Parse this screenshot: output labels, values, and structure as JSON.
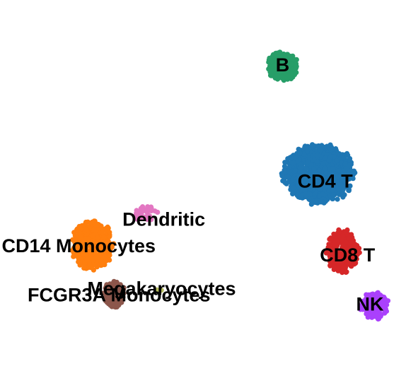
{
  "chart_data": {
    "type": "scatter",
    "title": "",
    "xlabel": "",
    "ylabel": "",
    "axes_visible": false,
    "grid": false,
    "legend": "on data",
    "xlim": [
      -8,
      10
    ],
    "ylim": [
      -9,
      6.5
    ],
    "clusters": [
      {
        "name": "CD4 T",
        "color": "#1f77b4",
        "center": [
          5.9,
          -0.8
        ],
        "spread": [
          1.55,
          1.3
        ],
        "count": 1100
      },
      {
        "name": "CD14 Monocytes",
        "color": "#ff7f0e",
        "center": [
          -4.2,
          -4.0
        ],
        "spread": [
          0.9,
          1.05
        ],
        "count": 480
      },
      {
        "name": "B",
        "color": "#279e68",
        "center": [
          4.3,
          4.0
        ],
        "spread": [
          0.65,
          0.65
        ],
        "count": 340
      },
      {
        "name": "CD8 T",
        "color": "#d62728",
        "center": [
          7.0,
          -4.3
        ],
        "spread": [
          0.7,
          0.95
        ],
        "count": 300
      },
      {
        "name": "NK",
        "color": "#aa40fc",
        "center": [
          8.4,
          -6.7
        ],
        "spread": [
          0.6,
          0.6
        ],
        "count": 160
      },
      {
        "name": "FCGR3A Monocytes",
        "color": "#8c564b",
        "center": [
          -3.2,
          -6.2
        ],
        "spread": [
          0.45,
          0.6
        ],
        "count": 150
      },
      {
        "name": "Dendritic",
        "color": "#e377c2",
        "center": [
          -1.8,
          -2.6
        ],
        "spread": [
          0.55,
          0.35
        ],
        "count": 35
      },
      {
        "name": "Megakaryocytes",
        "color": "#b5bd61",
        "center": [
          -1.2,
          -6.0
        ],
        "spread": [
          0.1,
          0.1
        ],
        "count": 3
      }
    ],
    "labels": [
      {
        "text": "B",
        "at": [
          4.3,
          4.0
        ]
      },
      {
        "text": "CD4 T",
        "at": [
          6.2,
          -1.2
        ]
      },
      {
        "text": "Dendritic",
        "at": [
          -1.0,
          -2.9
        ]
      },
      {
        "text": "CD14 Monocytes",
        "at": [
          -4.8,
          -4.1
        ]
      },
      {
        "text": "CD8 T",
        "at": [
          7.2,
          -4.5
        ]
      },
      {
        "text": "Megakaryocytes",
        "at": [
          -1.1,
          -6.0
        ]
      },
      {
        "text": "FCGR3A Monocytes",
        "at": [
          -3.0,
          -6.3
        ]
      },
      {
        "text": "NK",
        "at": [
          8.2,
          -6.7
        ]
      }
    ]
  }
}
